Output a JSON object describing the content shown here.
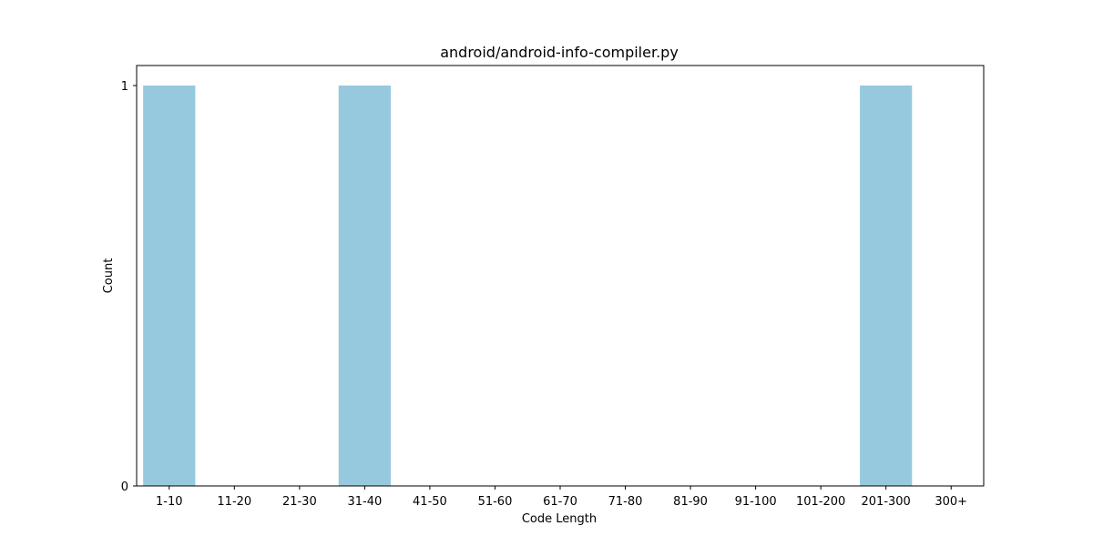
{
  "chart_data": {
    "type": "bar",
    "title": "android/android-info-compiler.py",
    "xlabel": "Code Length",
    "ylabel": "Count",
    "categories": [
      "1-10",
      "11-20",
      "21-30",
      "31-40",
      "41-50",
      "51-60",
      "61-70",
      "71-80",
      "81-90",
      "91-100",
      "101-200",
      "201-300",
      "300+"
    ],
    "values": [
      1,
      0,
      0,
      1,
      0,
      0,
      0,
      0,
      0,
      0,
      0,
      1,
      0
    ],
    "ylim": [
      0,
      1.05
    ],
    "yticks": [
      0,
      1
    ],
    "bar_color": "#96c9de",
    "grid": false,
    "legend": "none"
  }
}
